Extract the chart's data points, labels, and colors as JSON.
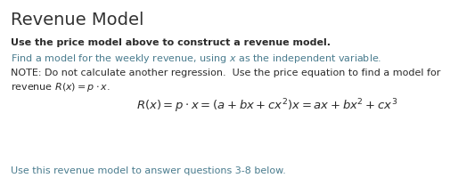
{
  "title": "Revenue Model",
  "title_fontsize": 14,
  "title_color": "#333333",
  "bg_color": "#ffffff",
  "bold_line1": "Use the price model above to construct a revenue model.",
  "teal_line1": "Find a model for the weekly revenue, using $x$ as the independent variable.",
  "note_line1": "NOTE: Do not calculate another regression.  Use the price equation to find a model for",
  "note_line2": "revenue $R(x) = p \\cdot x$.",
  "equation": "$R(x) = p \\cdot x = (a + bx + cx^2)x = ax + bx^2 + cx^3$",
  "teal_line2": "Use this revenue model to answer questions 3-8 below.",
  "bold_color": "#2b2b2b",
  "teal_color": "#4a7c8e",
  "note_color": "#2b2b2b",
  "eq_color": "#2b2b2b",
  "bold_fontsize": 8.0,
  "teal_fontsize": 8.0,
  "note_fontsize": 8.0,
  "eq_fontsize": 9.5,
  "fig_width": 5.06,
  "fig_height": 2.09,
  "dpi": 100
}
